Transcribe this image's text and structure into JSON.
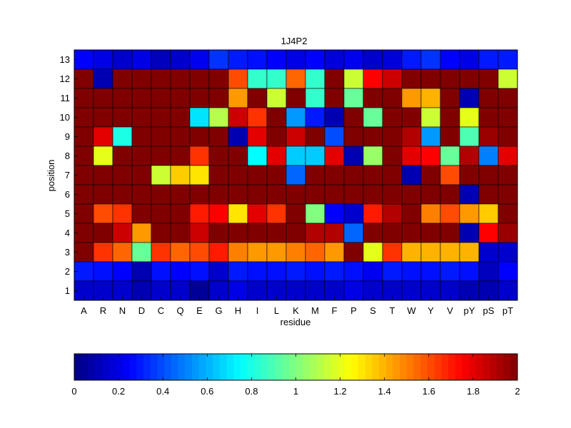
{
  "chart_data": {
    "type": "heatmap",
    "title": "1J4P2",
    "xlabel": "residue",
    "ylabel": "position",
    "x_categories": [
      "A",
      "R",
      "N",
      "D",
      "C",
      "Q",
      "E",
      "G",
      "H",
      "I",
      "L",
      "K",
      "M",
      "F",
      "P",
      "S",
      "T",
      "W",
      "Y",
      "V",
      "pY",
      "pS",
      "pT"
    ],
    "y_categories": [
      "1",
      "2",
      "3",
      "4",
      "5",
      "6",
      "7",
      "8",
      "9",
      "10",
      "11",
      "12",
      "13"
    ],
    "rows": [
      {
        "position": "13",
        "values": [
          0.25,
          0.2,
          0.15,
          0.2,
          0.12,
          0.15,
          0.22,
          0.35,
          0.3,
          0.28,
          0.25,
          0.2,
          0.25,
          0.18,
          0.22,
          0.15,
          0.18,
          0.3,
          0.35,
          0.25,
          0.2,
          0.3,
          0.3
        ]
      },
      {
        "position": "12",
        "values": [
          2,
          0.1,
          2,
          2,
          2,
          2,
          2,
          2,
          1.6,
          0.85,
          0.85,
          1.55,
          0.85,
          2,
          1.15,
          1.75,
          1.85,
          2,
          2,
          2,
          2,
          2,
          1.15
        ]
      },
      {
        "position": "11",
        "values": [
          2,
          2,
          2,
          2,
          2,
          2,
          2,
          2,
          1.45,
          2,
          1.15,
          2,
          0.85,
          2,
          0.95,
          2,
          2,
          1.45,
          1.4,
          2,
          0.1,
          2,
          2
        ]
      },
      {
        "position": "10",
        "values": [
          2,
          2,
          2,
          2,
          2,
          2,
          0.7,
          1.1,
          1.85,
          1.65,
          2,
          0.55,
          0.3,
          0.1,
          2,
          0.95,
          2,
          2,
          1.15,
          2,
          1.2,
          2,
          2
        ]
      },
      {
        "position": "9",
        "values": [
          2,
          1.8,
          0.8,
          2,
          2,
          2,
          2,
          2,
          0.1,
          1.8,
          2,
          1.85,
          2,
          0.4,
          2,
          2,
          2,
          1.9,
          0.55,
          2,
          0.9,
          1.95,
          2
        ]
      },
      {
        "position": "8",
        "values": [
          2,
          1.2,
          2,
          2,
          2,
          2,
          1.65,
          2,
          2,
          0.75,
          1.8,
          0.65,
          0.65,
          1.8,
          0.1,
          1.05,
          2,
          1.8,
          1.75,
          0.95,
          1.9,
          0.5,
          1.8
        ]
      },
      {
        "position": "7",
        "values": [
          2,
          2,
          2,
          2,
          1.15,
          1.35,
          1.3,
          2,
          2,
          2,
          2,
          0.45,
          2,
          2,
          2,
          2,
          2,
          0.1,
          2,
          1.6,
          2,
          2,
          2
        ]
      },
      {
        "position": "6",
        "values": [
          2,
          2,
          2,
          2,
          2,
          2,
          2,
          2,
          2,
          2,
          2,
          2,
          2,
          2,
          2,
          2,
          2,
          2,
          2,
          2,
          0.1,
          2,
          2
        ]
      },
      {
        "position": "5",
        "values": [
          2,
          1.6,
          1.65,
          2,
          2,
          2,
          1.7,
          1.75,
          1.3,
          1.8,
          1.65,
          2,
          1.0,
          0.25,
          0.15,
          1.7,
          1.9,
          2,
          1.5,
          1.6,
          1.45,
          1.35,
          2
        ]
      },
      {
        "position": "4",
        "values": [
          2,
          2,
          1.85,
          1.45,
          2,
          2,
          1.85,
          2,
          2,
          2,
          2,
          2,
          1.9,
          1.9,
          0.45,
          2,
          2,
          2,
          2,
          2,
          0.1,
          1.75,
          1.95
        ]
      },
      {
        "position": "3",
        "values": [
          2,
          1.65,
          1.55,
          0.95,
          1.65,
          1.55,
          1.6,
          1.7,
          1.5,
          1.45,
          1.45,
          1.5,
          1.55,
          1.45,
          2,
          1.2,
          1.65,
          1.4,
          1.4,
          1.4,
          1.4,
          0.15,
          0.15
        ]
      },
      {
        "position": "2",
        "values": [
          0.3,
          0.28,
          0.25,
          0.1,
          0.28,
          0.25,
          0.28,
          0.15,
          0.3,
          0.28,
          0.28,
          0.3,
          0.28,
          0.3,
          0.28,
          0.22,
          0.3,
          0.28,
          0.28,
          0.3,
          0.28,
          0.12,
          0.25
        ]
      },
      {
        "position": "1",
        "values": [
          0.15,
          0.15,
          0.15,
          0.1,
          0.15,
          0.15,
          0.05,
          0.15,
          0.2,
          0.15,
          0.15,
          0.15,
          0.15,
          0.15,
          0.2,
          0.15,
          0.15,
          0.15,
          0.15,
          0.15,
          0.1,
          0.1,
          0.15
        ]
      }
    ],
    "colorbar": {
      "colormap": "jet",
      "min": 0,
      "max": 2,
      "ticks": [
        "0",
        "0.2",
        "0.4",
        "0.6",
        "0.8",
        "1",
        "1.2",
        "1.4",
        "1.6",
        "1.8",
        "2"
      ]
    },
    "grid": true
  }
}
